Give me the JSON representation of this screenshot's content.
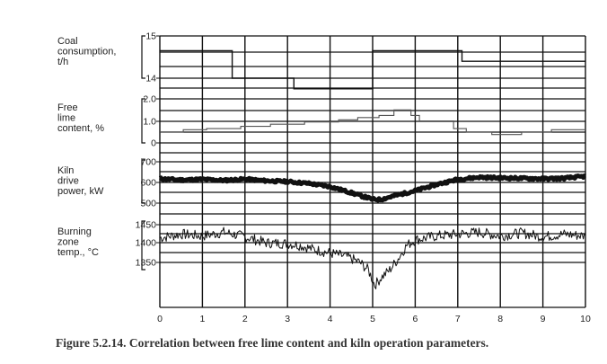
{
  "chart_data": {
    "type": "line",
    "caption": "Figure 5.2.14. Correlation between free lime content and kiln operation parameters.",
    "x_axis": {
      "ticks": [
        "0",
        "1",
        "2",
        "3",
        "4",
        "5",
        "6",
        "7",
        "8",
        "9",
        "10"
      ],
      "xlim": [
        0,
        10
      ]
    },
    "panels": [
      {
        "id": "coal",
        "label_lines": [
          "Coal",
          "consumption,",
          "t/h"
        ],
        "ticks": [
          "15",
          "14"
        ],
        "ylim": [
          13.6,
          15
        ],
        "series": [
          {
            "kind": "step",
            "points": [
              [
                0,
                14.65
              ],
              [
                1.7,
                14.65
              ],
              [
                1.7,
                14.0
              ],
              [
                3.15,
                14.0
              ],
              [
                3.15,
                13.75
              ],
              [
                5.0,
                13.75
              ],
              [
                5.0,
                14.65
              ],
              [
                7.1,
                14.65
              ],
              [
                7.1,
                14.4
              ],
              [
                10.0,
                14.4
              ]
            ]
          }
        ]
      },
      {
        "id": "lime",
        "label_lines": [
          "Free",
          "lime",
          "content, %"
        ],
        "ticks": [
          "2.0",
          "1.0",
          "0"
        ],
        "ylim": [
          0,
          2.0
        ],
        "series": [
          {
            "kind": "step",
            "points": [
              [
                0,
                0.5
              ],
              [
                0.55,
                0.5
              ],
              [
                0.55,
                0.6
              ],
              [
                1.1,
                0.6
              ],
              [
                1.1,
                0.65
              ],
              [
                1.9,
                0.65
              ],
              [
                1.9,
                0.75
              ],
              [
                2.6,
                0.75
              ],
              [
                2.6,
                0.85
              ],
              [
                3.4,
                0.85
              ],
              [
                3.4,
                0.95
              ],
              [
                4.2,
                0.95
              ],
              [
                4.2,
                1.05
              ],
              [
                4.65,
                1.05
              ],
              [
                4.65,
                1.15
              ],
              [
                5.15,
                1.15
              ],
              [
                5.15,
                1.25
              ],
              [
                5.5,
                1.25
              ],
              [
                5.5,
                1.5
              ],
              [
                5.9,
                1.5
              ],
              [
                5.9,
                1.25
              ],
              [
                6.1,
                1.25
              ],
              [
                6.1,
                1.0
              ],
              [
                6.9,
                1.0
              ],
              [
                6.9,
                0.65
              ],
              [
                7.2,
                0.65
              ],
              [
                7.2,
                0.5
              ],
              [
                7.8,
                0.5
              ],
              [
                7.8,
                0.38
              ],
              [
                8.5,
                0.38
              ],
              [
                8.5,
                0.5
              ],
              [
                9.2,
                0.5
              ],
              [
                9.2,
                0.6
              ],
              [
                10.0,
                0.6
              ]
            ]
          }
        ]
      },
      {
        "id": "power",
        "label_lines": [
          "Kiln",
          "drive",
          "power, kW"
        ],
        "ticks": [
          "700",
          "600",
          "500"
        ],
        "ylim": [
          480,
          720
        ],
        "series": [
          {
            "kind": "noisy",
            "noise": 6,
            "width": 5,
            "seed": 11,
            "points": [
              [
                0,
                618
              ],
              [
                0.5,
                612
              ],
              [
                1,
                615
              ],
              [
                1.5,
                610
              ],
              [
                2,
                616
              ],
              [
                2.5,
                608
              ],
              [
                3,
                604
              ],
              [
                3.5,
                595
              ],
              [
                4,
                580
              ],
              [
                4.5,
                550
              ],
              [
                5,
                518
              ],
              [
                5.2,
                518
              ],
              [
                5.5,
                535
              ],
              [
                6,
                560
              ],
              [
                6.5,
                590
              ],
              [
                7,
                615
              ],
              [
                7.5,
                625
              ],
              [
                8,
                622
              ],
              [
                8.5,
                620
              ],
              [
                9,
                618
              ],
              [
                9.5,
                620
              ],
              [
                10,
                630
              ]
            ]
          }
        ]
      },
      {
        "id": "temp",
        "label_lines": [
          "Burning",
          "zone",
          "temp., °C"
        ],
        "ticks": [
          "1450",
          "1400",
          "1350"
        ],
        "ylim": [
          1250,
          1460
        ],
        "series": [
          {
            "kind": "noisy",
            "noise": 14,
            "width": 1,
            "seed": 7,
            "points": [
              [
                0,
                1415
              ],
              [
                0.5,
                1425
              ],
              [
                1,
                1420
              ],
              [
                1.5,
                1430
              ],
              [
                2,
                1418
              ],
              [
                2.5,
                1402
              ],
              [
                3,
                1400
              ],
              [
                3.3,
                1395
              ],
              [
                3.6,
                1385
              ],
              [
                4,
                1375
              ],
              [
                4.4,
                1365
              ],
              [
                4.7,
                1350
              ],
              [
                4.9,
                1330
              ],
              [
                5.05,
                1290
              ],
              [
                5.2,
                1310
              ],
              [
                5.4,
                1330
              ],
              [
                5.6,
                1360
              ],
              [
                5.8,
                1395
              ],
              [
                6,
                1410
              ],
              [
                6.5,
                1420
              ],
              [
                7,
                1425
              ],
              [
                7.5,
                1430
              ],
              [
                8,
                1420
              ],
              [
                8.5,
                1428
              ],
              [
                9,
                1418
              ],
              [
                9.5,
                1425
              ],
              [
                10,
                1420
              ]
            ]
          }
        ]
      }
    ],
    "grid": true
  }
}
